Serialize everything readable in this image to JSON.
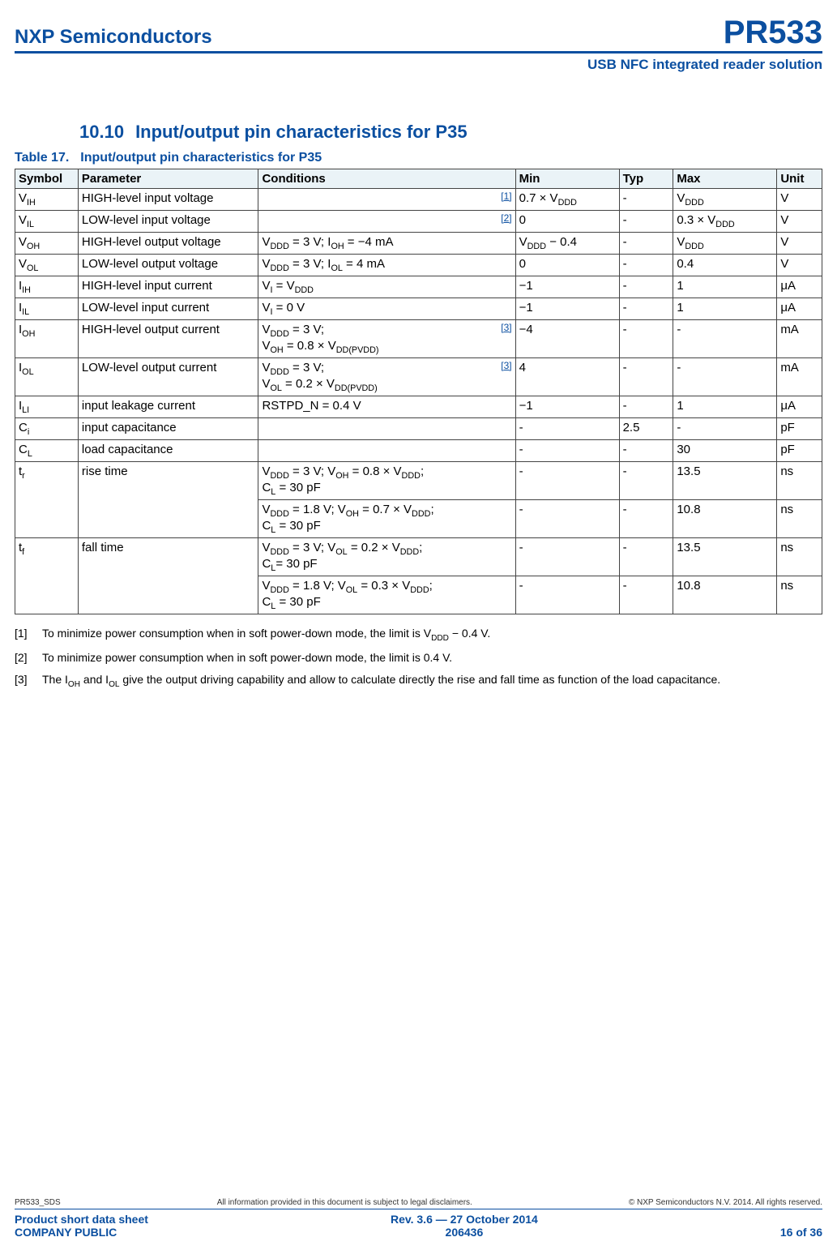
{
  "header": {
    "company": "NXP Semiconductors",
    "part": "PR533",
    "tagline": "USB NFC integrated reader solution"
  },
  "section": {
    "number": "10.10",
    "title": "Input/output pin characteristics for P35"
  },
  "table": {
    "label": "Table 17.",
    "caption": "Input/output pin characteristics for P35",
    "headers": {
      "symbol": "Symbol",
      "parameter": "Parameter",
      "conditions": "Conditions",
      "min": "Min",
      "typ": "Typ",
      "max": "Max",
      "unit": "Unit"
    },
    "rows": {
      "vih": {
        "sym_base": "V",
        "sym_sub": "IH",
        "param": "HIGH-level input voltage",
        "cond": "",
        "noteref": "[1]",
        "min": "0.7 × V",
        "min_sub": "DDD",
        "typ": "-",
        "max": "V",
        "max_sub": "DDD",
        "unit": "V"
      },
      "vil": {
        "sym_base": "V",
        "sym_sub": "IL",
        "param": "LOW-level input voltage",
        "cond": "",
        "noteref": "[2]",
        "min": "0",
        "typ": "-",
        "max": "0.3 × V",
        "max_sub": "DDD",
        "unit": "V"
      },
      "voh": {
        "sym_base": "V",
        "sym_sub": "OH",
        "param": "HIGH-level output voltage",
        "cond_html": "V<span class='sub'>DDD</span> = 3 V; I<span class='sub'>OH</span> = −4 mA",
        "min": "V",
        "min_sub": "DDD",
        "min_tail": " − 0.4",
        "typ": "-",
        "max": "V",
        "max_sub": "DDD",
        "unit": "V"
      },
      "vol": {
        "sym_base": "V",
        "sym_sub": "OL",
        "param": "LOW-level output voltage",
        "cond_html": "V<span class='sub'>DDD</span> = 3 V; I<span class='sub'>OL</span> = 4 mA",
        "min": "0",
        "typ": "-",
        "max": "0.4",
        "unit": "V"
      },
      "iih": {
        "sym_base": "I",
        "sym_sub": "IH",
        "param": "HIGH-level input current",
        "cond_html": "V<span class='sub'>I</span>  = V<span class='sub'>DDD</span>",
        "min": "−1",
        "typ": "-",
        "max": "1",
        "unit": "μA"
      },
      "iil": {
        "sym_base": "I",
        "sym_sub": "IL",
        "param": "LOW-level input current",
        "cond_html": "V<span class='sub'>I</span>  = 0 V",
        "min": "−1",
        "typ": "-",
        "max": "1",
        "unit": "μA"
      },
      "ioh": {
        "sym_base": "I",
        "sym_sub": "OH",
        "param": "HIGH-level output current",
        "cond_html": "V<span class='sub'>DDD</span> = 3 V;<br>V<span class='sub'>OH</span> = 0.8 × V<span class='sub'>DD(PVDD)</span>",
        "noteref": "[3]",
        "min": "−4",
        "typ": "-",
        "max": "-",
        "unit": "mA"
      },
      "iol": {
        "sym_base": "I",
        "sym_sub": "OL",
        "param": "LOW-level output current",
        "cond_html": "V<span class='sub'>DDD</span> = 3 V;<br>V<span class='sub'>OL</span> = 0.2 × V<span class='sub'>DD(PVDD)</span>",
        "noteref": "[3]",
        "min": "4",
        "typ": "-",
        "max": "-",
        "unit": "mA"
      },
      "ili": {
        "sym_base": "I",
        "sym_sub": "LI",
        "param": "input leakage current",
        "cond_html": "RSTPD_N = 0.4 V",
        "min": "−1",
        "typ": "-",
        "max": "1",
        "unit": "μA"
      },
      "ci": {
        "sym_base": "C",
        "sym_sub": "i",
        "param": "input capacitance",
        "cond": "",
        "min": "-",
        "typ": "2.5",
        "max": "-",
        "unit": "pF"
      },
      "cl": {
        "sym_base": "C",
        "sym_sub": "L",
        "param": "load capacitance",
        "cond": "",
        "min": "-",
        "typ": "-",
        "max": "30",
        "unit": "pF"
      },
      "tr1": {
        "sym_base": "t",
        "sym_sub": "r",
        "param": "rise time",
        "cond_html": "V<span class='sub'>DDD</span> = 3 V; V<span class='sub'>OH</span> = 0.8 × V<span class='sub'>DDD</span>;<br>C<span class='sub'>L</span> = 30 pF",
        "min": "-",
        "typ": "-",
        "max": "13.5",
        "unit": "ns"
      },
      "tr2": {
        "cond_html": "V<span class='sub'>DDD</span> = 1.8 V; V<span class='sub'>OH</span> = 0.7 × V<span class='sub'>DDD</span>;<br>C<span class='sub'>L</span> = 30 pF",
        "min": "-",
        "typ": "-",
        "max": "10.8",
        "unit": "ns"
      },
      "tf1": {
        "sym_base": "t",
        "sym_sub": "f",
        "param": "fall time",
        "cond_html": "V<span class='sub'>DDD</span> = 3 V; V<span class='sub'>OL</span> = 0.2 × V<span class='sub'>DDD</span>;<br>C<span class='sub'>L</span>= 30 pF",
        "min": "-",
        "typ": "-",
        "max": "13.5",
        "unit": "ns"
      },
      "tf2": {
        "cond_html": "V<span class='sub'>DDD</span> = 1.8 V; V<span class='sub'>OL</span> = 0.3 × V<span class='sub'>DDD</span>;<br>C<span class='sub'>L</span> = 30 pF",
        "min": "-",
        "typ": "-",
        "max": "10.8",
        "unit": "ns"
      }
    }
  },
  "footnotes": {
    "n1": {
      "num": "[1]",
      "text_html": "To minimize power consumption when in soft power-down mode, the limit is V<span class='sub'>DDD</span> − 0.4 V."
    },
    "n2": {
      "num": "[2]",
      "text": "To minimize power consumption when in soft power-down mode, the limit is 0.4 V."
    },
    "n3": {
      "num": "[3]",
      "text_html": "The I<span class='sub'>OH</span> and I<span class='sub'>OL</span> give the output driving capability and allow to calculate directly the rise and fall time as function of the load capacitance."
    }
  },
  "footer": {
    "docid": "PR533_SDS",
    "disclaimer": "All information provided in this document is subject to legal disclaimers.",
    "copyright": "© NXP Semiconductors N.V. 2014. All rights reserved.",
    "doctype1": "Product short data sheet",
    "doctype2": "COMPANY PUBLIC",
    "rev": "Rev. 3.6 — 27 October 2014",
    "docnum": "206436",
    "page": "16 of 36"
  }
}
